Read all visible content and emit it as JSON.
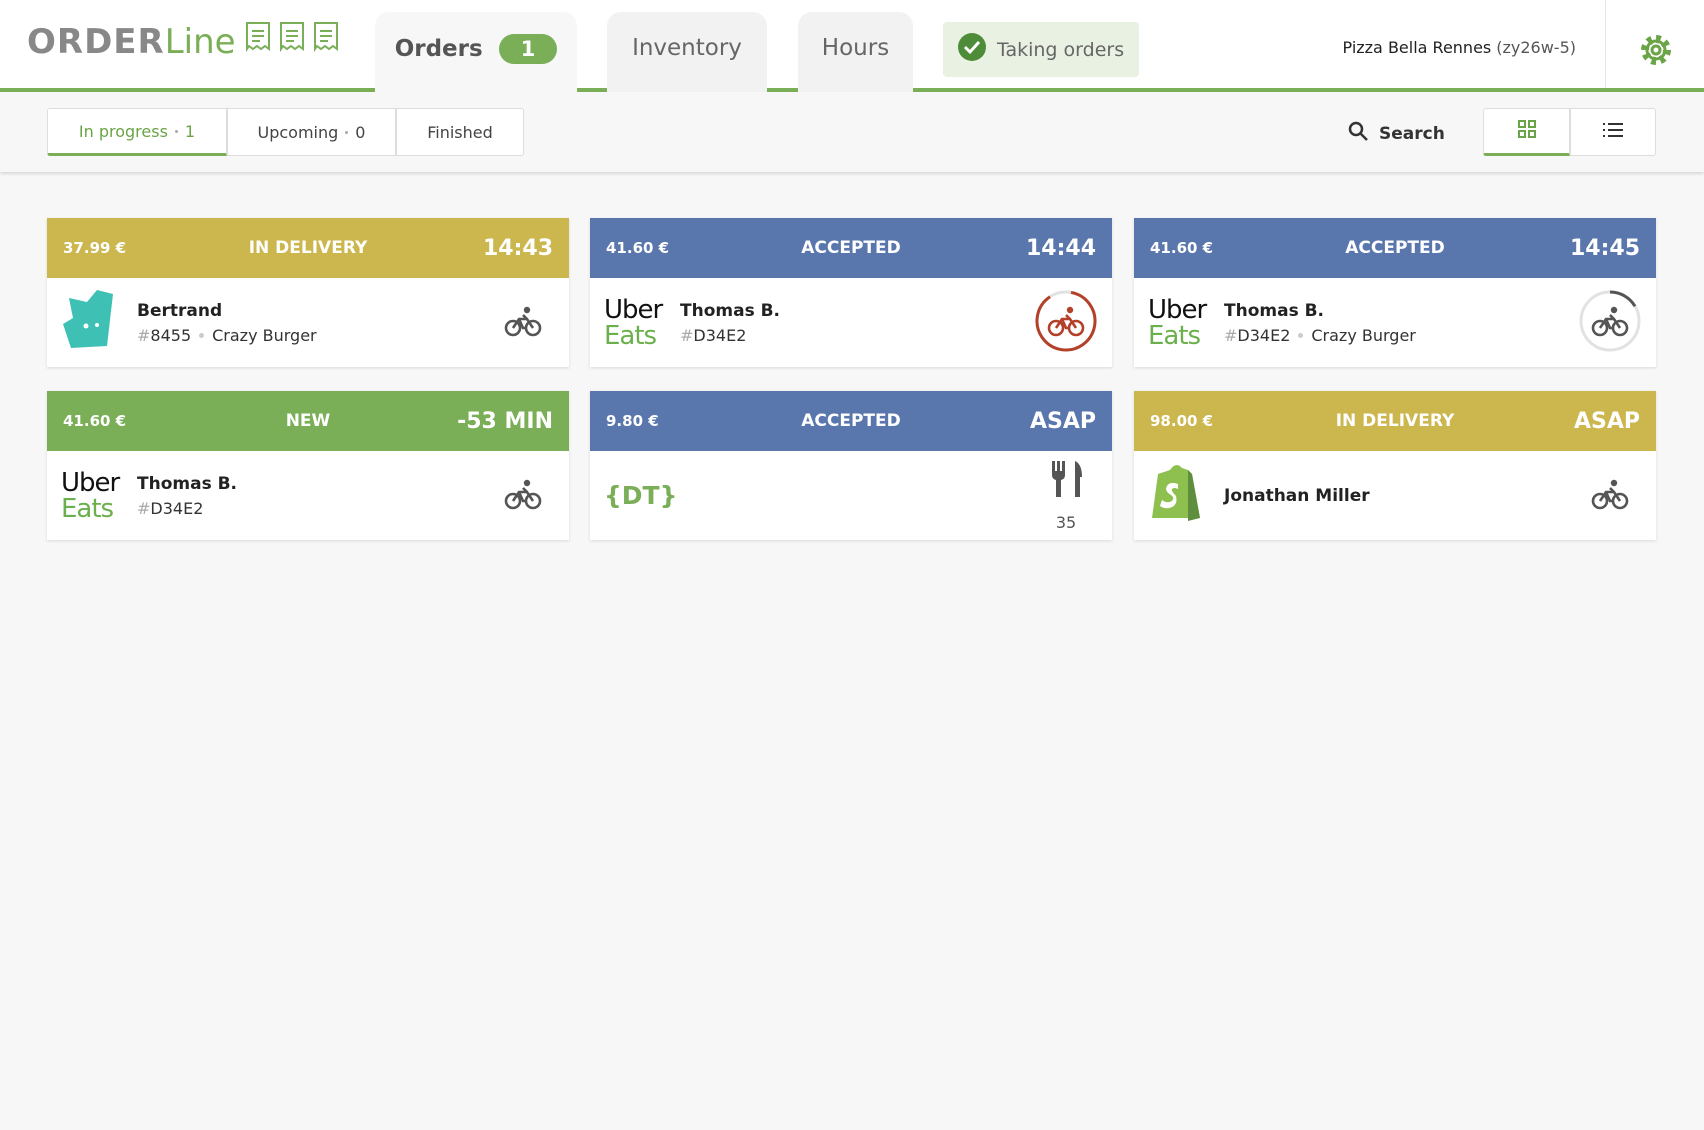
{
  "header": {
    "logo": [
      "ORDER",
      "Line"
    ],
    "tabs": [
      {
        "label": "Orders",
        "badge": "1"
      },
      {
        "label": "Inventory"
      },
      {
        "label": "Hours"
      }
    ],
    "status": "Taking orders",
    "restaurant": "Pizza Bella Rennes",
    "restaurant_code": "(zy26w-5)"
  },
  "filters": [
    {
      "label": "In progress",
      "count": "1"
    },
    {
      "label": "Upcoming",
      "count": "0"
    },
    {
      "label": "Finished"
    }
  ],
  "search": "Search",
  "orders": [
    {
      "price": "37.99 €",
      "status": "IN DELIVERY",
      "time": "14:43",
      "color": "#ccb64e",
      "platform": "deliveroo",
      "customer": "Bertrand",
      "id_prefix": "#",
      "id": "8455",
      "store": "Crazy Burger",
      "icon": "bike"
    },
    {
      "price": "41.60 €",
      "status": "ACCEPTED",
      "time": "14:44",
      "color": "#5a77ad",
      "platform": "ubereats",
      "logo": [
        "Uber",
        "Eats"
      ],
      "customer": "Thomas B.",
      "id_prefix": "#",
      "id": "D34E2",
      "icon": "bike",
      "ring": "late"
    },
    {
      "price": "41.60 €",
      "status": "ACCEPTED",
      "time": "14:45",
      "color": "#5a77ad",
      "platform": "ubereats",
      "logo": [
        "Uber",
        "Eats"
      ],
      "customer": "Thomas B.",
      "id_prefix": "#",
      "id": "D34E2",
      "store": "Crazy Burger",
      "icon": "bike",
      "ring": "pending"
    },
    {
      "price": "41.60 €",
      "status": "NEW",
      "time": "-53 MIN",
      "color": "#7aae57",
      "platform": "ubereats",
      "logo": [
        "Uber",
        "Eats"
      ],
      "customer": "Thomas B.",
      "id_prefix": "#",
      "id": "D34E2",
      "icon": "bike"
    },
    {
      "price": "9.80 €",
      "status": "ACCEPTED",
      "time": "ASAP",
      "color": "#5a77ad",
      "platform": "dt",
      "logo": [
        "{DT}"
      ],
      "icon": "cutlery",
      "table": "35"
    },
    {
      "price": "98.00 €",
      "status": "IN DELIVERY",
      "time": "ASAP",
      "color": "#ccb64e",
      "platform": "shopify",
      "customer": "Jonathan Miller",
      "icon": "bike"
    }
  ]
}
